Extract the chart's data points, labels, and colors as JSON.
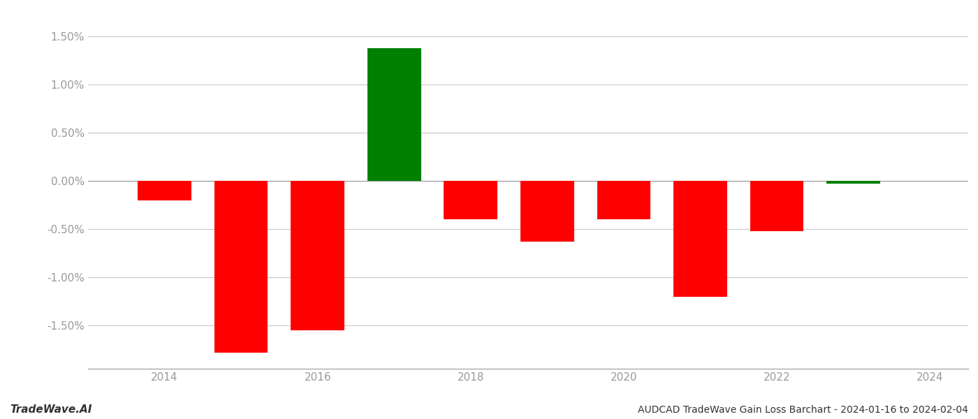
{
  "years": [
    2014,
    2015,
    2016,
    2017,
    2018,
    2019,
    2020,
    2021,
    2022,
    2023
  ],
  "values": [
    -0.002,
    -0.0178,
    -0.0155,
    0.0138,
    -0.004,
    -0.0063,
    -0.004,
    -0.012,
    -0.0052,
    -0.0003
  ],
  "bar_colors": [
    "#ff0000",
    "#ff0000",
    "#ff0000",
    "#008000",
    "#ff0000",
    "#ff0000",
    "#ff0000",
    "#ff0000",
    "#ff0000",
    "#008000"
  ],
  "title": "AUDCAD TradeWave Gain Loss Barchart - 2024-01-16 to 2024-02-04",
  "watermark": "TradeWave.AI",
  "background_color": "#ffffff",
  "grid_color": "#c8c8c8",
  "axis_color": "#999999",
  "text_color": "#333333",
  "ytick_values": [
    -0.015,
    -0.01,
    -0.005,
    0.0,
    0.005,
    0.01,
    0.015
  ],
  "ytick_labels": [
    "-1.50%",
    "-1.00%",
    "-0.50%",
    "0.00%",
    "0.50%",
    "1.00%",
    "1.50%"
  ],
  "xtick_values": [
    2014,
    2016,
    2018,
    2020,
    2022,
    2024
  ],
  "xtick_labels": [
    "2014",
    "2016",
    "2018",
    "2020",
    "2022",
    "2024"
  ],
  "xlim": [
    2013.0,
    2024.5
  ],
  "ylim": [
    -0.0195,
    0.0175
  ],
  "bar_width": 0.7
}
